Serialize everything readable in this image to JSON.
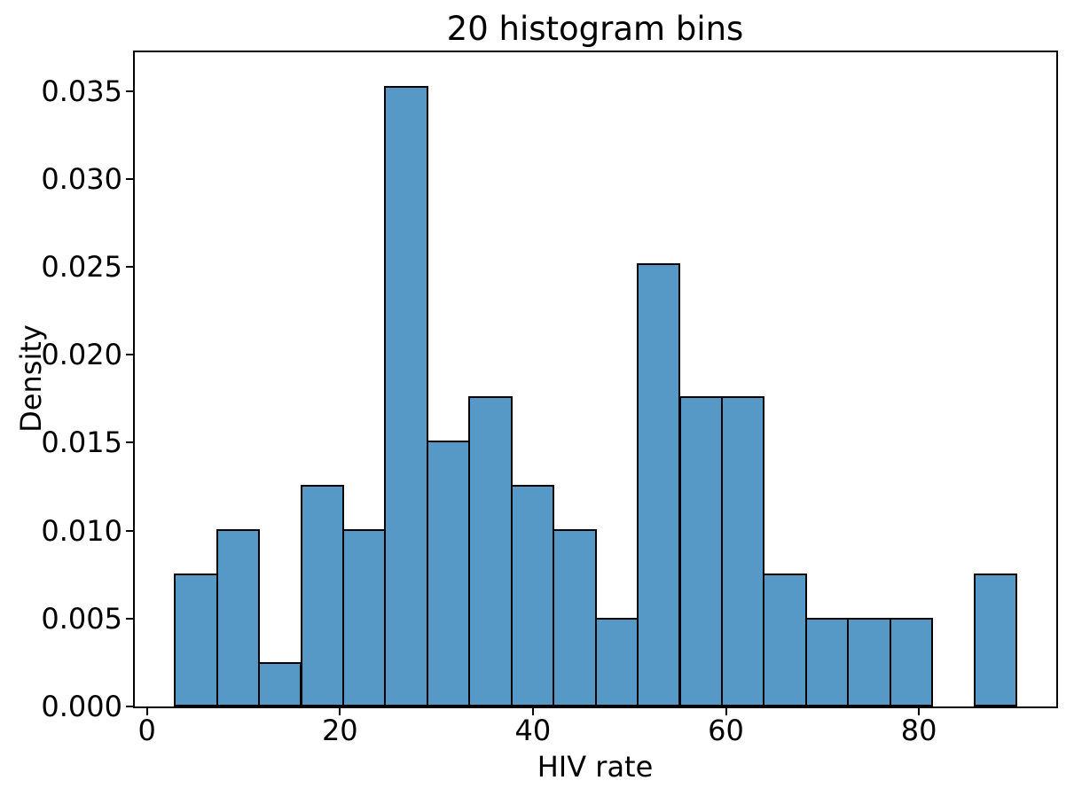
{
  "chart_data": {
    "type": "bar",
    "subtype": "histogram",
    "title": "20 histogram bins",
    "xlabel": "HIV rate",
    "ylabel": "Density",
    "n_bins": 20,
    "bin_edges": [
      2.9,
      7.26,
      11.62,
      15.98,
      20.34,
      24.7,
      29.06,
      33.42,
      37.78,
      42.14,
      46.5,
      50.86,
      55.22,
      59.58,
      63.94,
      68.3,
      72.66,
      77.02,
      81.38,
      85.74,
      90.1
    ],
    "densities": [
      0.007561,
      0.010082,
      0.00252,
      0.012602,
      0.010082,
      0.035286,
      0.015122,
      0.017643,
      0.012602,
      0.010082,
      0.005041,
      0.025204,
      0.017643,
      0.017643,
      0.007561,
      0.005041,
      0.005041,
      0.005041,
      0.0,
      0.007561
    ],
    "counts": [
      3,
      4,
      1,
      5,
      4,
      14,
      6,
      7,
      5,
      4,
      2,
      10,
      7,
      7,
      3,
      2,
      2,
      2,
      0,
      3
    ],
    "xlim": [
      -1.26,
      94.24
    ],
    "ylim": [
      0,
      0.0372
    ],
    "xticks": {
      "values": [
        0,
        20,
        40,
        60,
        80
      ],
      "labels": [
        "0",
        "20",
        "40",
        "60",
        "80"
      ]
    },
    "yticks": {
      "values": [
        0.0,
        0.005,
        0.01,
        0.015,
        0.02,
        0.025,
        0.03,
        0.035
      ],
      "labels": [
        "0.000",
        "0.005",
        "0.010",
        "0.015",
        "0.020",
        "0.025",
        "0.030",
        "0.035"
      ]
    },
    "grid": false,
    "legend_position": "none",
    "bar_color": "#5799C6",
    "bar_edge_color": "#000000",
    "axis_color": "#000000",
    "text_color": "#000000",
    "background_color": "#ffffff"
  }
}
